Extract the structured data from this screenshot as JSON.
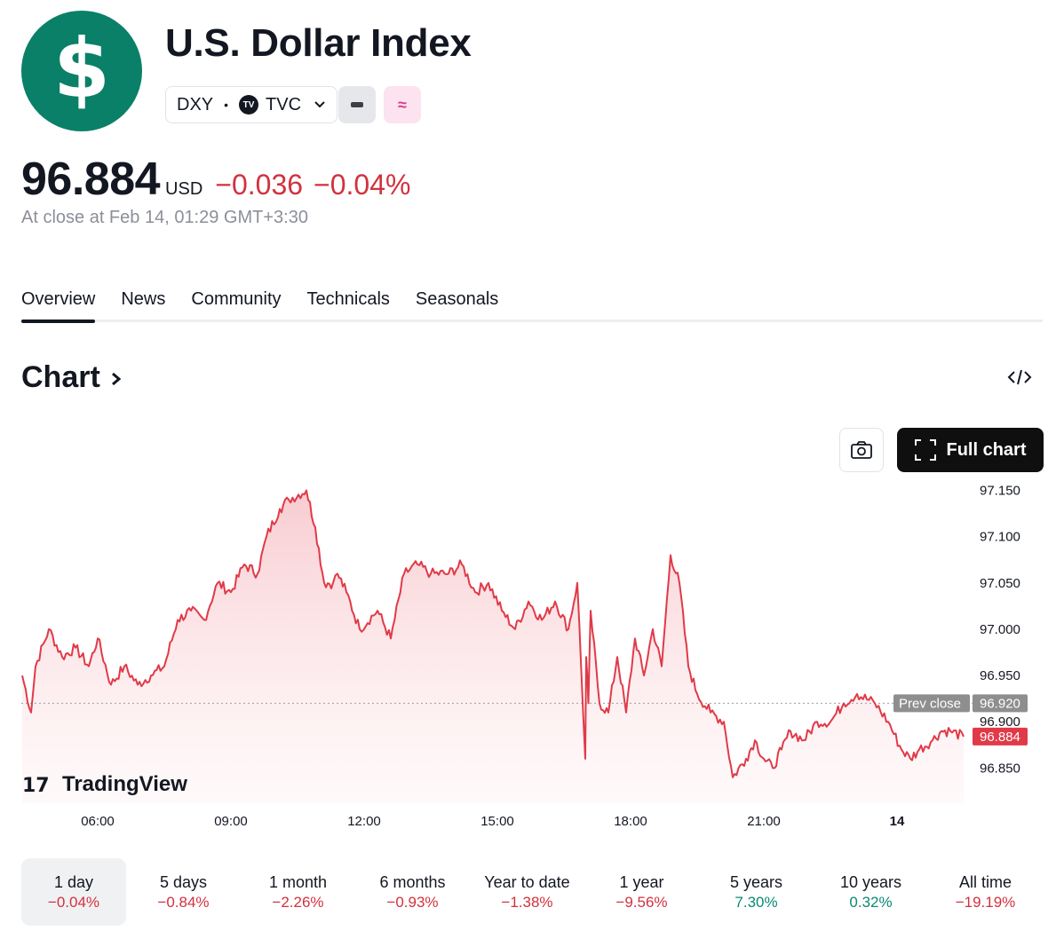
{
  "header": {
    "logo_symbol": "$",
    "title": "U.S. Dollar Index",
    "symbol": "DXY",
    "exchange": "TVC",
    "exchange_logo": "TV",
    "btn_gray_icon": "minus-icon",
    "btn_pink_icon": "approx-icon"
  },
  "quote": {
    "price": "96.884",
    "currency": "USD",
    "change": "−0.036",
    "change_pct": "−0.04%",
    "as_of": "At close at Feb 14, 01:29 GMT+3:30"
  },
  "tabs": [
    {
      "label": "Overview",
      "active": true
    },
    {
      "label": "News"
    },
    {
      "label": "Community"
    },
    {
      "label": "Technicals"
    },
    {
      "label": "Seasonals"
    }
  ],
  "chart_section": {
    "heading": "Chart",
    "full_chart_label": "Full chart",
    "watermark": "TradingView"
  },
  "chart_data": {
    "type": "area",
    "y_ticks": [
      "97.150",
      "97.100",
      "97.050",
      "97.000",
      "96.950",
      "96.900",
      "96.850"
    ],
    "x_ticks": [
      "06:00",
      "09:00",
      "12:00",
      "15:00",
      "18:00",
      "21:00",
      "14"
    ],
    "ylim": [
      96.812,
      97.162
    ],
    "prev_close": {
      "label": "Prev close",
      "value": 96.92,
      "text": "96.920"
    },
    "last": {
      "value": 96.884,
      "text": "96.884"
    },
    "colors": {
      "line": "#e03a48",
      "fill_top": "#f7c6cb",
      "prev_label_bg": "#8e8e8e",
      "last_label_bg": "#e03a48"
    },
    "series": {
      "times": [
        4.3,
        4.5,
        4.6,
        4.9,
        5.2,
        5.5,
        5.8,
        6.0,
        6.3,
        6.6,
        6.9,
        7.2,
        7.5,
        7.8,
        8.1,
        8.4,
        8.7,
        9.0,
        9.3,
        9.6,
        9.8,
        10.1,
        10.3,
        10.7,
        10.9,
        11.1,
        11.3,
        11.4,
        11.6,
        11.9,
        12.3,
        12.6,
        12.9,
        13.2,
        13.5,
        13.9,
        14.2,
        14.5,
        14.8,
        15.1,
        15.4,
        15.7,
        16.0,
        16.3,
        16.6,
        16.8,
        16.98,
        17.0,
        17.05,
        17.1,
        17.3,
        17.5,
        17.7,
        17.9,
        18.1,
        18.3,
        18.5,
        18.7,
        18.9,
        19.1,
        19.3,
        19.5,
        19.8,
        20.1,
        20.3,
        20.6,
        20.8,
        21.0,
        21.2,
        21.4,
        21.6,
        21.9,
        22.2,
        22.5,
        22.8,
        23.1,
        23.5,
        23.8,
        24.1,
        24.3,
        24.5,
        24.8,
        25.0,
        25.2,
        25.5
      ],
      "values": [
        96.95,
        96.91,
        96.96,
        97.0,
        96.97,
        96.98,
        96.96,
        96.99,
        96.94,
        96.96,
        96.94,
        96.95,
        96.96,
        97.01,
        97.02,
        97.01,
        97.05,
        97.04,
        97.07,
        97.06,
        97.1,
        97.13,
        97.14,
        97.15,
        97.11,
        97.05,
        97.05,
        97.06,
        97.04,
        97.0,
        97.02,
        96.99,
        97.06,
        97.07,
        97.06,
        97.06,
        97.07,
        97.04,
        97.05,
        97.02,
        97.0,
        97.03,
        97.01,
        97.03,
        97.0,
        97.05,
        96.86,
        96.97,
        96.92,
        97.02,
        96.92,
        96.91,
        96.97,
        96.91,
        96.99,
        96.95,
        97.0,
        96.96,
        97.08,
        97.05,
        96.96,
        96.93,
        96.91,
        96.9,
        96.84,
        96.86,
        96.88,
        96.86,
        96.85,
        96.87,
        96.89,
        96.88,
        96.9,
        96.9,
        96.92,
        96.93,
        96.92,
        96.9,
        96.87,
        96.86,
        96.87,
        96.88,
        96.89,
        96.89,
        96.884
      ]
    }
  },
  "periods": [
    {
      "label": "1 day",
      "value": "−0.04%",
      "sign": "neg",
      "active": true
    },
    {
      "label": "5 days",
      "value": "−0.84%",
      "sign": "neg"
    },
    {
      "label": "1 month",
      "value": "−2.26%",
      "sign": "neg"
    },
    {
      "label": "6 months",
      "value": "−0.93%",
      "sign": "neg"
    },
    {
      "label": "Year to date",
      "value": "−1.38%",
      "sign": "neg"
    },
    {
      "label": "1 year",
      "value": "−9.56%",
      "sign": "neg"
    },
    {
      "label": "5 years",
      "value": "7.30%",
      "sign": "pos"
    },
    {
      "label": "10 years",
      "value": "0.32%",
      "sign": "pos"
    },
    {
      "label": "All time",
      "value": "−19.19%",
      "sign": "neg"
    }
  ]
}
